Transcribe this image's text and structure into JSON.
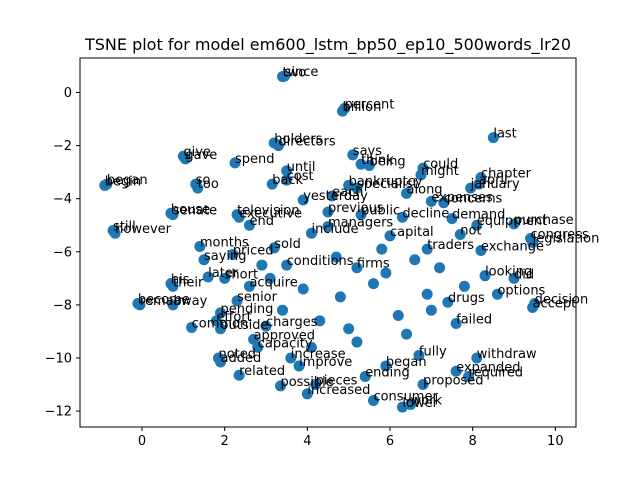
{
  "chart_data": {
    "type": "scatter",
    "title": "TSNE plot for model em600_lstm_bp50_ep10_500words_lr20",
    "xlabel": "",
    "ylabel": "",
    "xlim": [
      -1.5,
      10.5
    ],
    "ylim": [
      -12.6,
      1.3
    ],
    "x_ticks": [
      0,
      2,
      4,
      6,
      8,
      10
    ],
    "y_ticks": [
      0,
      -2,
      -4,
      -6,
      -8,
      -10,
      -12
    ],
    "x_tick_labels": [
      "0",
      "2",
      "4",
      "6",
      "8",
      "10"
    ],
    "y_tick_labels": [
      "0",
      "−2",
      "−4",
      "−6",
      "−8",
      "−10",
      "−12"
    ],
    "grid": false,
    "marker_color": "#1f77b4",
    "points": [
      {
        "x": 3.4,
        "y": 0.6,
        "label": "two"
      },
      {
        "x": 3.45,
        "y": 0.62,
        "label": "since"
      },
      {
        "x": 4.85,
        "y": -0.7,
        "label": "billion"
      },
      {
        "x": 4.9,
        "y": -0.6,
        "label": "percent"
      },
      {
        "x": 8.5,
        "y": -1.7,
        "label": "last"
      },
      {
        "x": 3.2,
        "y": -1.9,
        "label": "holders"
      },
      {
        "x": 3.3,
        "y": -2.0,
        "label": "directors"
      },
      {
        "x": 5.1,
        "y": -2.35,
        "label": "says"
      },
      {
        "x": 1.0,
        "y": -2.4,
        "label": "give"
      },
      {
        "x": 1.05,
        "y": -2.5,
        "label": "gave"
      },
      {
        "x": 2.25,
        "y": -2.65,
        "label": "spend"
      },
      {
        "x": 5.3,
        "y": -2.7,
        "label": "think"
      },
      {
        "x": 5.5,
        "y": -2.75,
        "label": "being"
      },
      {
        "x": 3.5,
        "y": -2.95,
        "label": "until"
      },
      {
        "x": 6.8,
        "y": -2.85,
        "label": "could"
      },
      {
        "x": 6.75,
        "y": -3.1,
        "label": "might"
      },
      {
        "x": 8.2,
        "y": -3.2,
        "label": "chapter"
      },
      {
        "x": 8.15,
        "y": -3.45,
        "label": "april"
      },
      {
        "x": 7.95,
        "y": -3.6,
        "label": "january"
      },
      {
        "x": 3.5,
        "y": -3.3,
        "label": "cost"
      },
      {
        "x": 3.15,
        "y": -3.45,
        "label": "back"
      },
      {
        "x": -0.9,
        "y": -3.5,
        "label": "begin"
      },
      {
        "x": -0.85,
        "y": -3.45,
        "label": "began"
      },
      {
        "x": 1.3,
        "y": -3.45,
        "label": "so"
      },
      {
        "x": 1.35,
        "y": -3.6,
        "label": "too"
      },
      {
        "x": 5.0,
        "y": -3.5,
        "label": "bankruptcy"
      },
      {
        "x": 5.2,
        "y": -3.6,
        "label": "specialist"
      },
      {
        "x": 6.4,
        "y": -3.8,
        "label": "along"
      },
      {
        "x": 3.9,
        "y": -4.05,
        "label": "yesterday"
      },
      {
        "x": 4.6,
        "y": -3.9,
        "label": "each"
      },
      {
        "x": 7.0,
        "y": -4.1,
        "label": "expenses"
      },
      {
        "x": 7.3,
        "y": -4.15,
        "label": "concerns"
      },
      {
        "x": 0.7,
        "y": -4.55,
        "label": "house"
      },
      {
        "x": 0.75,
        "y": -4.6,
        "label": "senate"
      },
      {
        "x": 2.3,
        "y": -4.6,
        "label": "television"
      },
      {
        "x": 2.35,
        "y": -4.7,
        "label": "executive"
      },
      {
        "x": 4.5,
        "y": -4.5,
        "label": "previous"
      },
      {
        "x": 5.3,
        "y": -4.6,
        "label": "public"
      },
      {
        "x": 6.3,
        "y": -4.7,
        "label": "decline"
      },
      {
        "x": 7.5,
        "y": -4.75,
        "label": "demand"
      },
      {
        "x": 9.0,
        "y": -4.95,
        "label": "purchase"
      },
      {
        "x": 2.6,
        "y": -5.0,
        "label": "end"
      },
      {
        "x": 4.5,
        "y": -5.05,
        "label": "managers"
      },
      {
        "x": 8.1,
        "y": -5.0,
        "label": "equipment"
      },
      {
        "x": -0.7,
        "y": -5.2,
        "label": "still"
      },
      {
        "x": -0.65,
        "y": -5.3,
        "label": "however"
      },
      {
        "x": 4.1,
        "y": -5.3,
        "label": "include"
      },
      {
        "x": 6.0,
        "y": -5.4,
        "label": "capital"
      },
      {
        "x": 7.7,
        "y": -5.35,
        "label": "not"
      },
      {
        "x": 9.4,
        "y": -5.5,
        "label": "congress"
      },
      {
        "x": 9.45,
        "y": -5.65,
        "label": "legislation"
      },
      {
        "x": 1.4,
        "y": -5.8,
        "label": "months"
      },
      {
        "x": 3.2,
        "y": -5.85,
        "label": "sold"
      },
      {
        "x": 6.9,
        "y": -5.9,
        "label": "traders"
      },
      {
        "x": 8.2,
        "y": -5.95,
        "label": "exchange"
      },
      {
        "x": 2.2,
        "y": -6.1,
        "label": "priced"
      },
      {
        "x": 1.5,
        "y": -6.3,
        "label": "saying"
      },
      {
        "x": 3.5,
        "y": -6.5,
        "label": "conditions"
      },
      {
        "x": 5.2,
        "y": -6.6,
        "label": "firms"
      },
      {
        "x": 8.3,
        "y": -6.9,
        "label": "looking"
      },
      {
        "x": 9.0,
        "y": -7.0,
        "label": "did"
      },
      {
        "x": 1.6,
        "y": -6.95,
        "label": "later"
      },
      {
        "x": 2.0,
        "y": -7.0,
        "label": "short"
      },
      {
        "x": 0.7,
        "y": -7.2,
        "label": "his"
      },
      {
        "x": 0.75,
        "y": -7.3,
        "label": "their"
      },
      {
        "x": 2.6,
        "y": -7.3,
        "label": "acquire"
      },
      {
        "x": 8.6,
        "y": -7.6,
        "label": "options"
      },
      {
        "x": 7.4,
        "y": -7.9,
        "label": "drugs"
      },
      {
        "x": 9.5,
        "y": -7.95,
        "label": "decision"
      },
      {
        "x": 9.45,
        "y": -8.1,
        "label": "accept"
      },
      {
        "x": -0.1,
        "y": -7.95,
        "label": "become"
      },
      {
        "x": -0.05,
        "y": -8.0,
        "label": "remain"
      },
      {
        "x": 0.75,
        "y": -8.0,
        "label": "away"
      },
      {
        "x": 2.3,
        "y": -7.85,
        "label": "senior"
      },
      {
        "x": 1.9,
        "y": -8.3,
        "label": "pending"
      },
      {
        "x": 1.8,
        "y": -8.6,
        "label": "effort"
      },
      {
        "x": 3.0,
        "y": -8.8,
        "label": "charges"
      },
      {
        "x": 1.2,
        "y": -8.85,
        "label": "common"
      },
      {
        "x": 1.9,
        "y": -8.9,
        "label": "outside"
      },
      {
        "x": 7.6,
        "y": -8.7,
        "label": "failed"
      },
      {
        "x": 2.7,
        "y": -9.3,
        "label": "approved"
      },
      {
        "x": 2.8,
        "y": -9.6,
        "label": "capacity"
      },
      {
        "x": 1.85,
        "y": -10.0,
        "label": "noted"
      },
      {
        "x": 1.9,
        "y": -10.15,
        "label": "added"
      },
      {
        "x": 3.6,
        "y": -10.0,
        "label": "increase"
      },
      {
        "x": 6.7,
        "y": -9.9,
        "label": "fully"
      },
      {
        "x": 8.1,
        "y": -10.0,
        "label": "withdraw"
      },
      {
        "x": 3.8,
        "y": -10.3,
        "label": "improve"
      },
      {
        "x": 5.9,
        "y": -10.3,
        "label": "began"
      },
      {
        "x": 7.6,
        "y": -10.5,
        "label": "expanded"
      },
      {
        "x": 2.35,
        "y": -10.65,
        "label": "related"
      },
      {
        "x": 7.9,
        "y": -10.7,
        "label": "required"
      },
      {
        "x": 5.4,
        "y": -10.7,
        "label": "ending"
      },
      {
        "x": 3.35,
        "y": -11.05,
        "label": "possible"
      },
      {
        "x": 4.2,
        "y": -11.0,
        "label": "pieces"
      },
      {
        "x": 6.8,
        "y": -11.0,
        "label": "proposed"
      },
      {
        "x": 4.0,
        "y": -11.35,
        "label": "increased"
      },
      {
        "x": 5.6,
        "y": -11.6,
        "label": "consumer"
      },
      {
        "x": 6.3,
        "y": -11.85,
        "label": "lower"
      },
      {
        "x": 6.5,
        "y": -11.75,
        "label": "work"
      },
      {
        "x": 5.2,
        "y": -9.4,
        "label": ""
      },
      {
        "x": 6.2,
        "y": -8.4,
        "label": ""
      },
      {
        "x": 4.8,
        "y": -7.7,
        "label": ""
      },
      {
        "x": 5.6,
        "y": -7.2,
        "label": ""
      },
      {
        "x": 6.9,
        "y": -7.6,
        "label": ""
      },
      {
        "x": 4.3,
        "y": -8.6,
        "label": ""
      },
      {
        "x": 5.9,
        "y": -6.8,
        "label": ""
      },
      {
        "x": 3.9,
        "y": -7.4,
        "label": ""
      },
      {
        "x": 7.2,
        "y": -6.6,
        "label": ""
      },
      {
        "x": 4.7,
        "y": -6.2,
        "label": ""
      },
      {
        "x": 6.4,
        "y": -9.1,
        "label": ""
      },
      {
        "x": 3.4,
        "y": -8.2,
        "label": ""
      },
      {
        "x": 5.0,
        "y": -8.9,
        "label": ""
      },
      {
        "x": 7.0,
        "y": -8.2,
        "label": ""
      },
      {
        "x": 4.1,
        "y": -9.6,
        "label": ""
      },
      {
        "x": 5.8,
        "y": -5.9,
        "label": ""
      },
      {
        "x": 6.6,
        "y": -6.3,
        "label": ""
      },
      {
        "x": 3.1,
        "y": -7.0,
        "label": ""
      },
      {
        "x": 7.8,
        "y": -7.3,
        "label": ""
      },
      {
        "x": 2.9,
        "y": -6.5,
        "label": ""
      }
    ]
  }
}
